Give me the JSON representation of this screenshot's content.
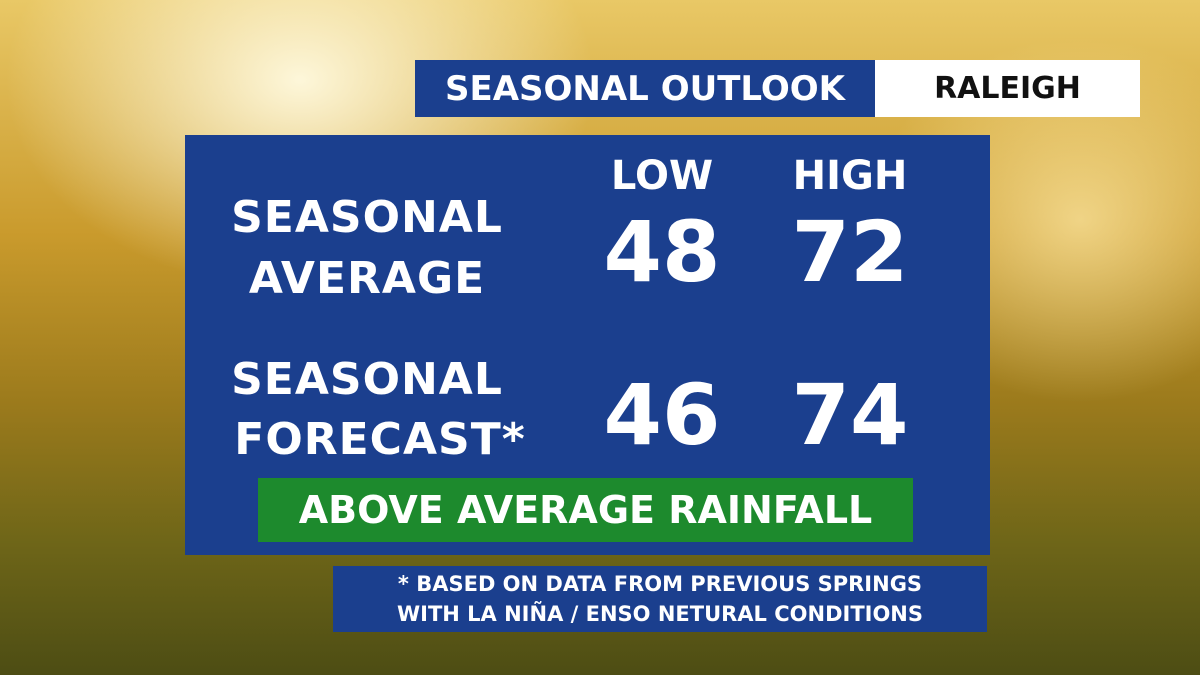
{
  "header": {
    "title": "SEASONAL OUTLOOK",
    "location": "RALEIGH"
  },
  "table": {
    "columns": [
      "LOW",
      "HIGH"
    ],
    "rows": [
      {
        "label": [
          "SEASONAL",
          "AVERAGE"
        ],
        "values": [
          "48",
          "72"
        ]
      },
      {
        "label": [
          "SEASONAL",
          "FORECAST*"
        ],
        "values": [
          "46",
          "74"
        ]
      }
    ]
  },
  "banner": "ABOVE AVERAGE RAINFALL",
  "footnote": [
    "* BASED ON DATA FROM PREVIOUS SPRINGS",
    "WITH LA NIÑA / ENSO NETURAL CONDITIONS"
  ]
}
